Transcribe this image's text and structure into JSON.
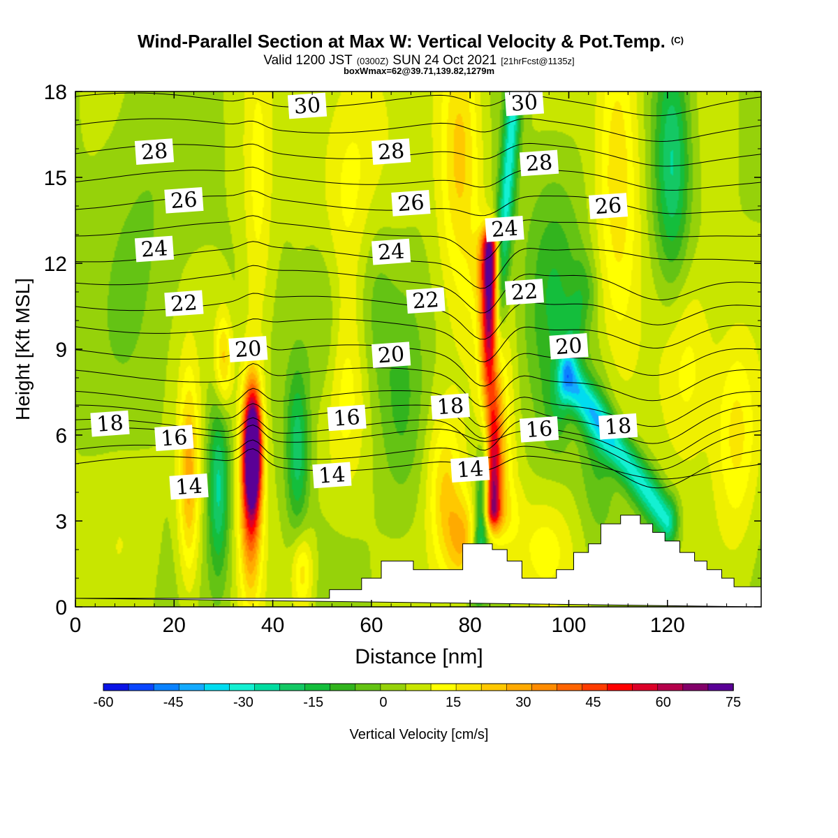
{
  "title": {
    "main": "Wind-Parallel Section at Max W: Vertical Velocity & Pot.Temp.",
    "main_mark": "(C)",
    "valid_a": "Valid 1200 JST",
    "valid_b": "(0300Z)",
    "valid_c": "SUN 24 Oct 2021",
    "valid_d": "[21hrFcst@1135z]",
    "box": "boxWmax=62@39.71,139.82,1279m"
  },
  "chart_data": {
    "type": "heatmap",
    "xlabel": "Distance [nm]",
    "ylabel": "Height [Kft MSL]",
    "xlim": [
      0,
      139
    ],
    "ylim": [
      0,
      18
    ],
    "x_ticks": [
      "0",
      "20",
      "40",
      "60",
      "80",
      "100",
      "120"
    ],
    "y_ticks": [
      "0",
      "3",
      "6",
      "9",
      "12",
      "15",
      "18"
    ],
    "colorbar": {
      "label": "Vertical Velocity [cm/s]",
      "range": [
        -60,
        75
      ],
      "tick_labels": [
        "-60",
        "-45",
        "-30",
        "-15",
        "0",
        "15",
        "30",
        "45",
        "60",
        "75"
      ],
      "colors": [
        "#0a14e6",
        "#0a46ff",
        "#0a82ff",
        "#14aaff",
        "#00dcf0",
        "#14f0d2",
        "#00dca0",
        "#14c864",
        "#14be3c",
        "#32b41e",
        "#64c314",
        "#96d20a",
        "#c8e600",
        "#f0f000",
        "#ffff00",
        "#fae600",
        "#ffc800",
        "#ffaa00",
        "#ff8c00",
        "#ff6400",
        "#ff3c00",
        "#ff0000",
        "#dc0028",
        "#b4004b",
        "#820069",
        "#5a0096"
      ]
    },
    "w_features": [
      {
        "x": 36,
        "z": 5.5,
        "w": 75,
        "sx": 1.2,
        "sz": 1.4
      },
      {
        "x": 35.5,
        "z": 4.2,
        "w": 48,
        "sx": 1.6,
        "sz": 2.6
      },
      {
        "x": 23,
        "z": 4.5,
        "w": 30,
        "sx": 1.5,
        "sz": 2.5
      },
      {
        "x": 30,
        "z": 8.6,
        "w": 25,
        "sx": 1.3,
        "sz": 1.2
      },
      {
        "x": 29,
        "z": 4.2,
        "w": -28,
        "sx": 1.5,
        "sz": 2.2
      },
      {
        "x": 45,
        "z": 5.5,
        "w": -25,
        "sx": 1.6,
        "sz": 2.0
      },
      {
        "x": 54,
        "z": 7.5,
        "w": 15,
        "sx": 3.5,
        "sz": 2.5
      },
      {
        "x": 51,
        "z": 9.5,
        "w": -16,
        "sx": 3.0,
        "sz": 2.5
      },
      {
        "x": 56,
        "z": 14.5,
        "w": 15,
        "sx": 5.0,
        "sz": 3.5
      },
      {
        "x": 37,
        "z": 14.0,
        "w": 12,
        "sx": 2.0,
        "sz": 4.0
      },
      {
        "x": 46,
        "z": 1.2,
        "w": 20,
        "sx": 1.5,
        "sz": 1.0
      },
      {
        "x": 75,
        "z": 4.0,
        "w": 22,
        "sx": 2.5,
        "sz": 2.0
      },
      {
        "x": 79,
        "z": 2.2,
        "w": 26,
        "sx": 2.5,
        "sz": 1.2
      },
      {
        "x": 78,
        "z": 16.0,
        "w": 25,
        "sx": 3.0,
        "sz": 3.5
      },
      {
        "x": 110,
        "z": 15.5,
        "w": 22,
        "sx": 3.0,
        "sz": 4.0
      },
      {
        "x": 121,
        "z": 15.5,
        "w": -28,
        "sx": 2.5,
        "sz": 3.0
      },
      {
        "x": 97,
        "z": 11.0,
        "w": -15,
        "sx": 4.0,
        "sz": 3.0
      },
      {
        "x": 124,
        "z": 8.5,
        "w": 15,
        "sx": 4.0,
        "sz": 2.5
      },
      {
        "x": 134,
        "z": 6.0,
        "w": 18,
        "sx": 3.0,
        "sz": 2.5
      },
      {
        "x": 60,
        "z": 11.0,
        "w": -12,
        "sx": 3.0,
        "sz": 2.5
      },
      {
        "x": 13,
        "z": 13.0,
        "w": -6,
        "sx": 6.0,
        "sz": 4.0
      },
      {
        "x": 10,
        "z": 3.0,
        "w": 4,
        "sx": 5.0,
        "sz": 2.0
      },
      {
        "x": 95,
        "z": 2.0,
        "w": 12,
        "sx": 4.0,
        "sz": 1.2
      },
      {
        "x": 66,
        "z": 7.0,
        "w": -10,
        "sx": 3.0,
        "sz": 2.5
      },
      {
        "x": 106,
        "z": 5.5,
        "w": -12,
        "sx": 2.5,
        "sz": 2.0
      }
    ],
    "w_bands": [
      {
        "x0": 84.5,
        "z0": 3.5,
        "x1": 84,
        "z1": 12.5,
        "w": 62,
        "width": 1.2
      },
      {
        "x0": 86.5,
        "z0": 3.5,
        "x1": 84,
        "z1": 11.5,
        "w": 20,
        "width": 2.5
      },
      {
        "x0": 81.5,
        "z0": 1.0,
        "x1": 89,
        "z1": 18.0,
        "w": -35,
        "width": 1.4
      },
      {
        "x0": 100,
        "z0": 8.0,
        "x1": 120,
        "z1": 3.0,
        "w": -35,
        "width": 1.4
      },
      {
        "x0": 103,
        "z0": 11.0,
        "x1": 98,
        "z1": 7.0,
        "w": -10,
        "width": 2.0
      }
    ],
    "theta_contours": {
      "levels": [
        14,
        15,
        16,
        17,
        18,
        19,
        20,
        21,
        22,
        23,
        24,
        25,
        26,
        27,
        28,
        29,
        30,
        31
      ],
      "base_height": [
        5.0,
        5.4,
        6.0,
        6.3,
        6.8,
        7.3,
        8.1,
        8.9,
        9.8,
        10.6,
        11.5,
        12.3,
        13.2,
        14.1,
        15.0,
        15.9,
        16.8,
        17.7
      ],
      "labels": [
        {
          "text": "30",
          "x": 47,
          "z": 17.5
        },
        {
          "text": "28",
          "x": 16,
          "z": 15.9
        },
        {
          "text": "28",
          "x": 64,
          "z": 15.9
        },
        {
          "text": "30",
          "x": 91,
          "z": 17.6
        },
        {
          "text": "28",
          "x": 94,
          "z": 15.5
        },
        {
          "text": "26",
          "x": 22,
          "z": 14.2
        },
        {
          "text": "26",
          "x": 68,
          "z": 14.1
        },
        {
          "text": "24",
          "x": 16,
          "z": 12.5
        },
        {
          "text": "24",
          "x": 64,
          "z": 12.4
        },
        {
          "text": "24",
          "x": 87,
          "z": 13.2
        },
        {
          "text": "26",
          "x": 108,
          "z": 14.0
        },
        {
          "text": "22",
          "x": 22,
          "z": 10.6
        },
        {
          "text": "22",
          "x": 71,
          "z": 10.7
        },
        {
          "text": "22",
          "x": 91,
          "z": 11.0
        },
        {
          "text": "20",
          "x": 35,
          "z": 9.0
        },
        {
          "text": "20",
          "x": 64,
          "z": 8.8
        },
        {
          "text": "20",
          "x": 100,
          "z": 9.1
        },
        {
          "text": "18",
          "x": 7,
          "z": 6.4
        },
        {
          "text": "16",
          "x": 20,
          "z": 5.9
        },
        {
          "text": "16",
          "x": 55,
          "z": 6.6
        },
        {
          "text": "18",
          "x": 76,
          "z": 7.0
        },
        {
          "text": "16",
          "x": 94,
          "z": 6.2
        },
        {
          "text": "18",
          "x": 110,
          "z": 6.3
        },
        {
          "text": "14",
          "x": 23,
          "z": 4.2
        },
        {
          "text": "14",
          "x": 52,
          "z": 4.6
        },
        {
          "text": "14",
          "x": 80,
          "z": 4.8
        }
      ]
    },
    "terrain_kft": [
      [
        0,
        0.3
      ],
      [
        51.5,
        0.3
      ],
      [
        51.5,
        0.6
      ],
      [
        58,
        0.6
      ],
      [
        58,
        1.0
      ],
      [
        62,
        1.0
      ],
      [
        62,
        1.6
      ],
      [
        68.5,
        1.6
      ],
      [
        68.5,
        1.3
      ],
      [
        78.5,
        1.3
      ],
      [
        78.5,
        2.2
      ],
      [
        84.5,
        2.2
      ],
      [
        84.5,
        2.0
      ],
      [
        87.5,
        2.0
      ],
      [
        87.5,
        1.6
      ],
      [
        90.5,
        1.6
      ],
      [
        90.5,
        1.0
      ],
      [
        97.5,
        1.0
      ],
      [
        97.5,
        1.3
      ],
      [
        101,
        1.3
      ],
      [
        101,
        1.9
      ],
      [
        104,
        1.9
      ],
      [
        104,
        2.2
      ],
      [
        106.5,
        2.2
      ],
      [
        106.5,
        2.9
      ],
      [
        110.5,
        2.9
      ],
      [
        110.5,
        3.2
      ],
      [
        114.5,
        3.2
      ],
      [
        114.5,
        2.9
      ],
      [
        117,
        2.9
      ],
      [
        117,
        2.6
      ],
      [
        119.5,
        2.6
      ],
      [
        119.5,
        2.3
      ],
      [
        122.5,
        2.3
      ],
      [
        122.5,
        1.9
      ],
      [
        125.5,
        1.9
      ],
      [
        125.5,
        1.6
      ],
      [
        128,
        1.6
      ],
      [
        128,
        1.3
      ],
      [
        131,
        1.3
      ],
      [
        131,
        1.0
      ],
      [
        133.5,
        1.0
      ],
      [
        133.5,
        0.7
      ],
      [
        139,
        0.7
      ],
      [
        139,
        0
      ]
    ]
  }
}
